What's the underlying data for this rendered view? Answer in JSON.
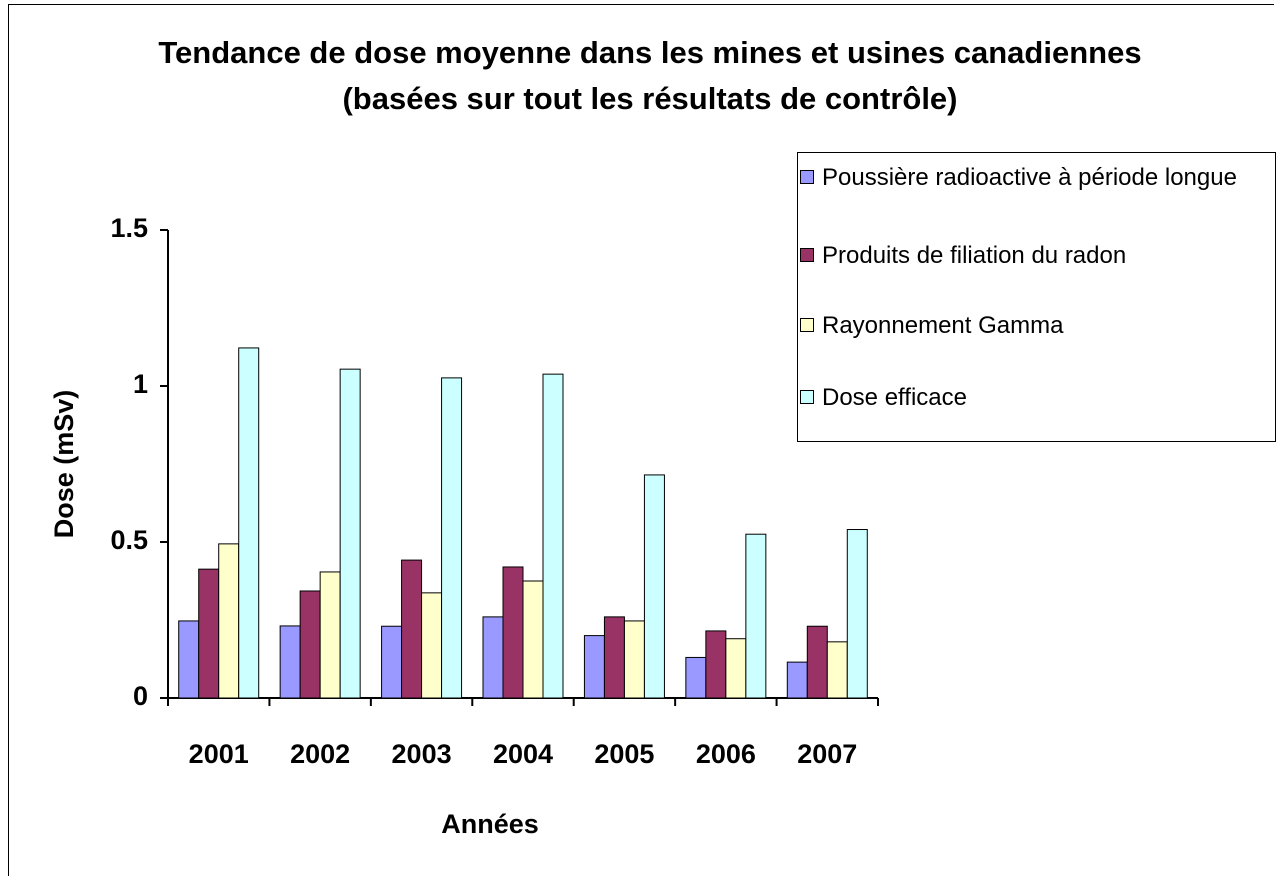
{
  "chart_data": {
    "type": "bar",
    "title": "Tendance de dose moyenne dans les mines et usines canadiennes (basées sur tout les résultats de contrôle)",
    "xlabel": "Années",
    "ylabel": "Dose (mSv)",
    "categories": [
      "2001",
      "2002",
      "2003",
      "2004",
      "2005",
      "2006",
      "2007"
    ],
    "series": [
      {
        "name": "Poussière radioactive à période longue",
        "color": "#9999ff",
        "values": [
          0.247,
          0.231,
          0.23,
          0.26,
          0.2,
          0.13,
          0.115
        ]
      },
      {
        "name": "Produits de filiation du radon",
        "color": "#993366",
        "values": [
          0.413,
          0.343,
          0.442,
          0.42,
          0.26,
          0.215,
          0.23
        ]
      },
      {
        "name": "Rayonnement Gamma",
        "color": "#ffffcc",
        "values": [
          0.494,
          0.404,
          0.337,
          0.375,
          0.247,
          0.19,
          0.18
        ]
      },
      {
        "name": "Dose efficace",
        "color": "#ccffff",
        "values": [
          1.122,
          1.054,
          1.026,
          1.038,
          0.715,
          0.525,
          0.54
        ]
      }
    ],
    "ylim": [
      0,
      1.5
    ],
    "yticks": [
      0,
      0.5,
      1,
      1.5
    ],
    "grid": false,
    "legend": "right"
  }
}
